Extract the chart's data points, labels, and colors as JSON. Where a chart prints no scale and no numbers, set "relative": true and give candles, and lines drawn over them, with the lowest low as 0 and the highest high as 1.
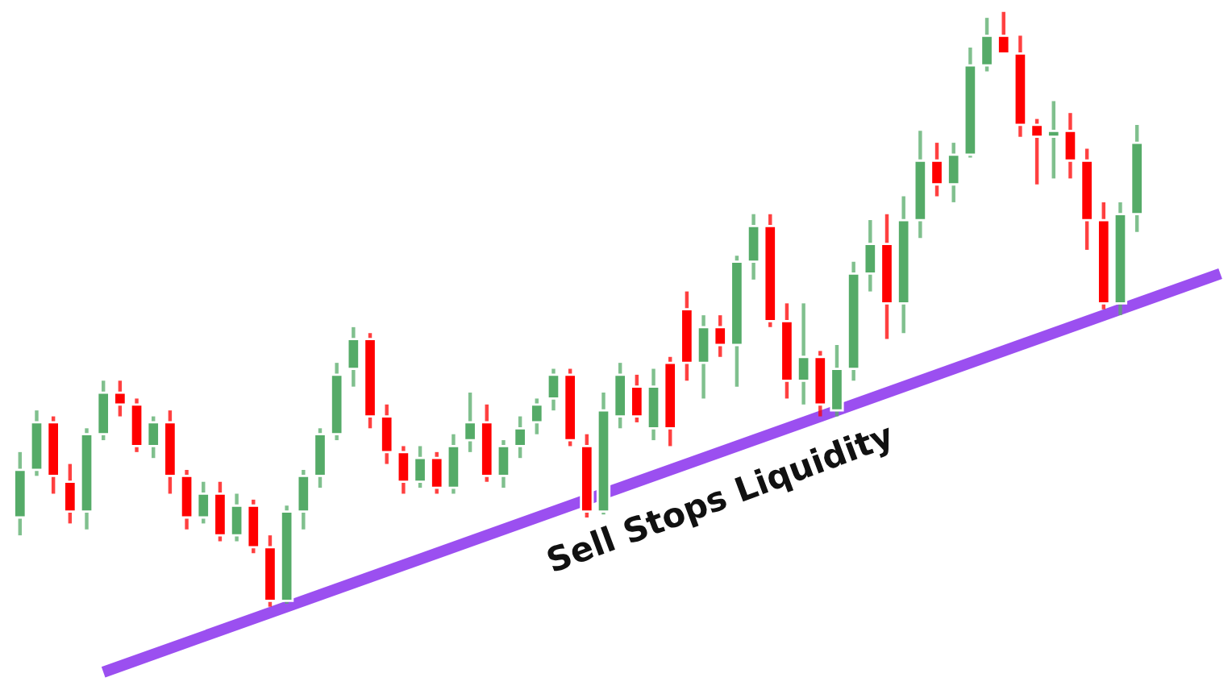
{
  "chart_data": {
    "type": "candlestick",
    "relative": true,
    "categories": [
      null,
      null,
      null,
      null,
      null,
      null,
      null,
      null,
      null,
      null,
      null,
      null,
      null,
      null,
      null,
      null,
      null,
      null,
      null,
      null,
      null,
      null,
      null,
      null,
      null,
      null,
      null,
      null,
      null,
      null,
      null,
      null,
      null,
      null,
      null,
      null,
      null,
      null,
      null,
      null,
      null,
      null,
      null,
      null,
      null,
      null,
      null,
      null,
      null,
      null,
      null,
      null,
      null,
      null,
      null,
      null,
      null,
      null,
      null,
      null,
      null,
      null,
      null,
      null,
      null,
      null,
      null,
      null,
      null,
      null,
      null,
      null,
      null
    ],
    "annotations": [
      "Sell Stops Liquidity"
    ],
    "series": [
      {
        "ohlc": [
          [
            0.15,
            0.26,
            0.12,
            0.23
          ],
          [
            0.23,
            0.33,
            0.22,
            0.31
          ],
          [
            0.31,
            0.32,
            0.19,
            0.22
          ],
          [
            0.21,
            0.24,
            0.14,
            0.16
          ],
          [
            0.16,
            0.3,
            0.13,
            0.29
          ],
          [
            0.29,
            0.38,
            0.28,
            0.36
          ],
          [
            0.36,
            0.38,
            0.32,
            0.34
          ],
          [
            0.34,
            0.35,
            0.26,
            0.27
          ],
          [
            0.27,
            0.32,
            0.25,
            0.31
          ],
          [
            0.31,
            0.33,
            0.19,
            0.22
          ],
          [
            0.22,
            0.23,
            0.13,
            0.15
          ],
          [
            0.15,
            0.21,
            0.14,
            0.19
          ],
          [
            0.19,
            0.21,
            0.11,
            0.12
          ],
          [
            0.12,
            0.19,
            0.11,
            0.17
          ],
          [
            0.17,
            0.18,
            0.09,
            0.1
          ],
          [
            0.1,
            0.12,
            0,
            0.01
          ],
          [
            0.01,
            0.17,
            0.005,
            0.16
          ],
          [
            0.16,
            0.23,
            0.13,
            0.22
          ],
          [
            0.22,
            0.3,
            0.2,
            0.29
          ],
          [
            0.29,
            0.41,
            0.28,
            0.39
          ],
          [
            0.4,
            0.47,
            0.37,
            0.45
          ],
          [
            0.45,
            0.46,
            0.3,
            0.32
          ],
          [
            0.32,
            0.34,
            0.24,
            0.26
          ],
          [
            0.26,
            0.27,
            0.19,
            0.21
          ],
          [
            0.21,
            0.27,
            0.2,
            0.25
          ],
          [
            0.25,
            0.26,
            0.19,
            0.2
          ],
          [
            0.2,
            0.29,
            0.19,
            0.27
          ],
          [
            0.28,
            0.36,
            0.26,
            0.31
          ],
          [
            0.31,
            0.34,
            0.21,
            0.22
          ],
          [
            0.22,
            0.28,
            0.2,
            0.27
          ],
          [
            0.27,
            0.32,
            0.25,
            0.3
          ],
          [
            0.31,
            0.35,
            0.29,
            0.34
          ],
          [
            0.35,
            0.4,
            0.33,
            0.39
          ],
          [
            0.39,
            0.4,
            0.27,
            0.28
          ],
          [
            0.27,
            0.29,
            0.15,
            0.16
          ],
          [
            0.16,
            0.36,
            0.155,
            0.33
          ],
          [
            0.32,
            0.41,
            0.3,
            0.39
          ],
          [
            0.37,
            0.39,
            0.31,
            0.32
          ],
          [
            0.3,
            0.4,
            0.28,
            0.37
          ],
          [
            0.41,
            0.42,
            0.27,
            0.3
          ],
          [
            0.5,
            0.53,
            0.38,
            0.41
          ],
          [
            0.41,
            0.49,
            0.35,
            0.47
          ],
          [
            0.47,
            0.49,
            0.42,
            0.44
          ],
          [
            0.44,
            0.59,
            0.37,
            0.58
          ],
          [
            0.58,
            0.66,
            0.55,
            0.64
          ],
          [
            0.64,
            0.66,
            0.47,
            0.48
          ],
          [
            0.48,
            0.51,
            0.35,
            0.38
          ],
          [
            0.38,
            0.51,
            0.34,
            0.42
          ],
          [
            0.42,
            0.43,
            0.32,
            0.34
          ],
          [
            0.33,
            0.44,
            0.32,
            0.4
          ],
          [
            0.4,
            0.58,
            0.38,
            0.56
          ],
          [
            0.56,
            0.65,
            0.53,
            0.61
          ],
          [
            0.61,
            0.66,
            0.45,
            0.51
          ],
          [
            0.51,
            0.69,
            0.46,
            0.65
          ],
          [
            0.65,
            0.8,
            0.62,
            0.75
          ],
          [
            0.75,
            0.78,
            0.69,
            0.71
          ],
          [
            0.71,
            0.78,
            0.68,
            0.76
          ],
          [
            0.76,
            0.94,
            0.755,
            0.91
          ],
          [
            0.91,
            0.99,
            0.9,
            0.96
          ],
          [
            0.96,
            1,
            0.93,
            0.93
          ],
          [
            0.93,
            0.96,
            0.79,
            0.81
          ],
          [
            0.81,
            0.82,
            0.71,
            0.79
          ],
          [
            0.79,
            0.85,
            0.72,
            0.8
          ],
          [
            0.8,
            0.83,
            0.72,
            0.75
          ],
          [
            0.75,
            0.77,
            0.6,
            0.65
          ],
          [
            0.65,
            0.68,
            0.5,
            0.51
          ],
          [
            0.51,
            0.68,
            0.49,
            0.66
          ],
          [
            0.66,
            0.81,
            0.63,
            0.78
          ],
          null,
          null,
          null,
          null,
          null
        ]
      },
      {
        "type": "line",
        "values": [
          null,
          null,
          null,
          null,
          null,
          -0.11,
          null,
          null,
          null,
          null,
          null,
          null,
          null,
          null,
          null,
          null,
          null,
          null,
          null,
          null,
          null,
          null,
          null,
          null,
          null,
          null,
          null,
          null,
          null,
          null,
          null,
          null,
          null,
          null,
          null,
          null,
          null,
          null,
          null,
          null,
          null,
          null,
          null,
          null,
          null,
          null,
          null,
          null,
          null,
          null,
          null,
          null,
          null,
          null,
          null,
          null,
          null,
          null,
          null,
          null,
          null,
          null,
          null,
          null,
          null,
          null,
          null,
          null,
          null,
          null,
          null,
          null,
          0.56
        ],
        "color": "#9b4ff0"
      }
    ]
  }
}
